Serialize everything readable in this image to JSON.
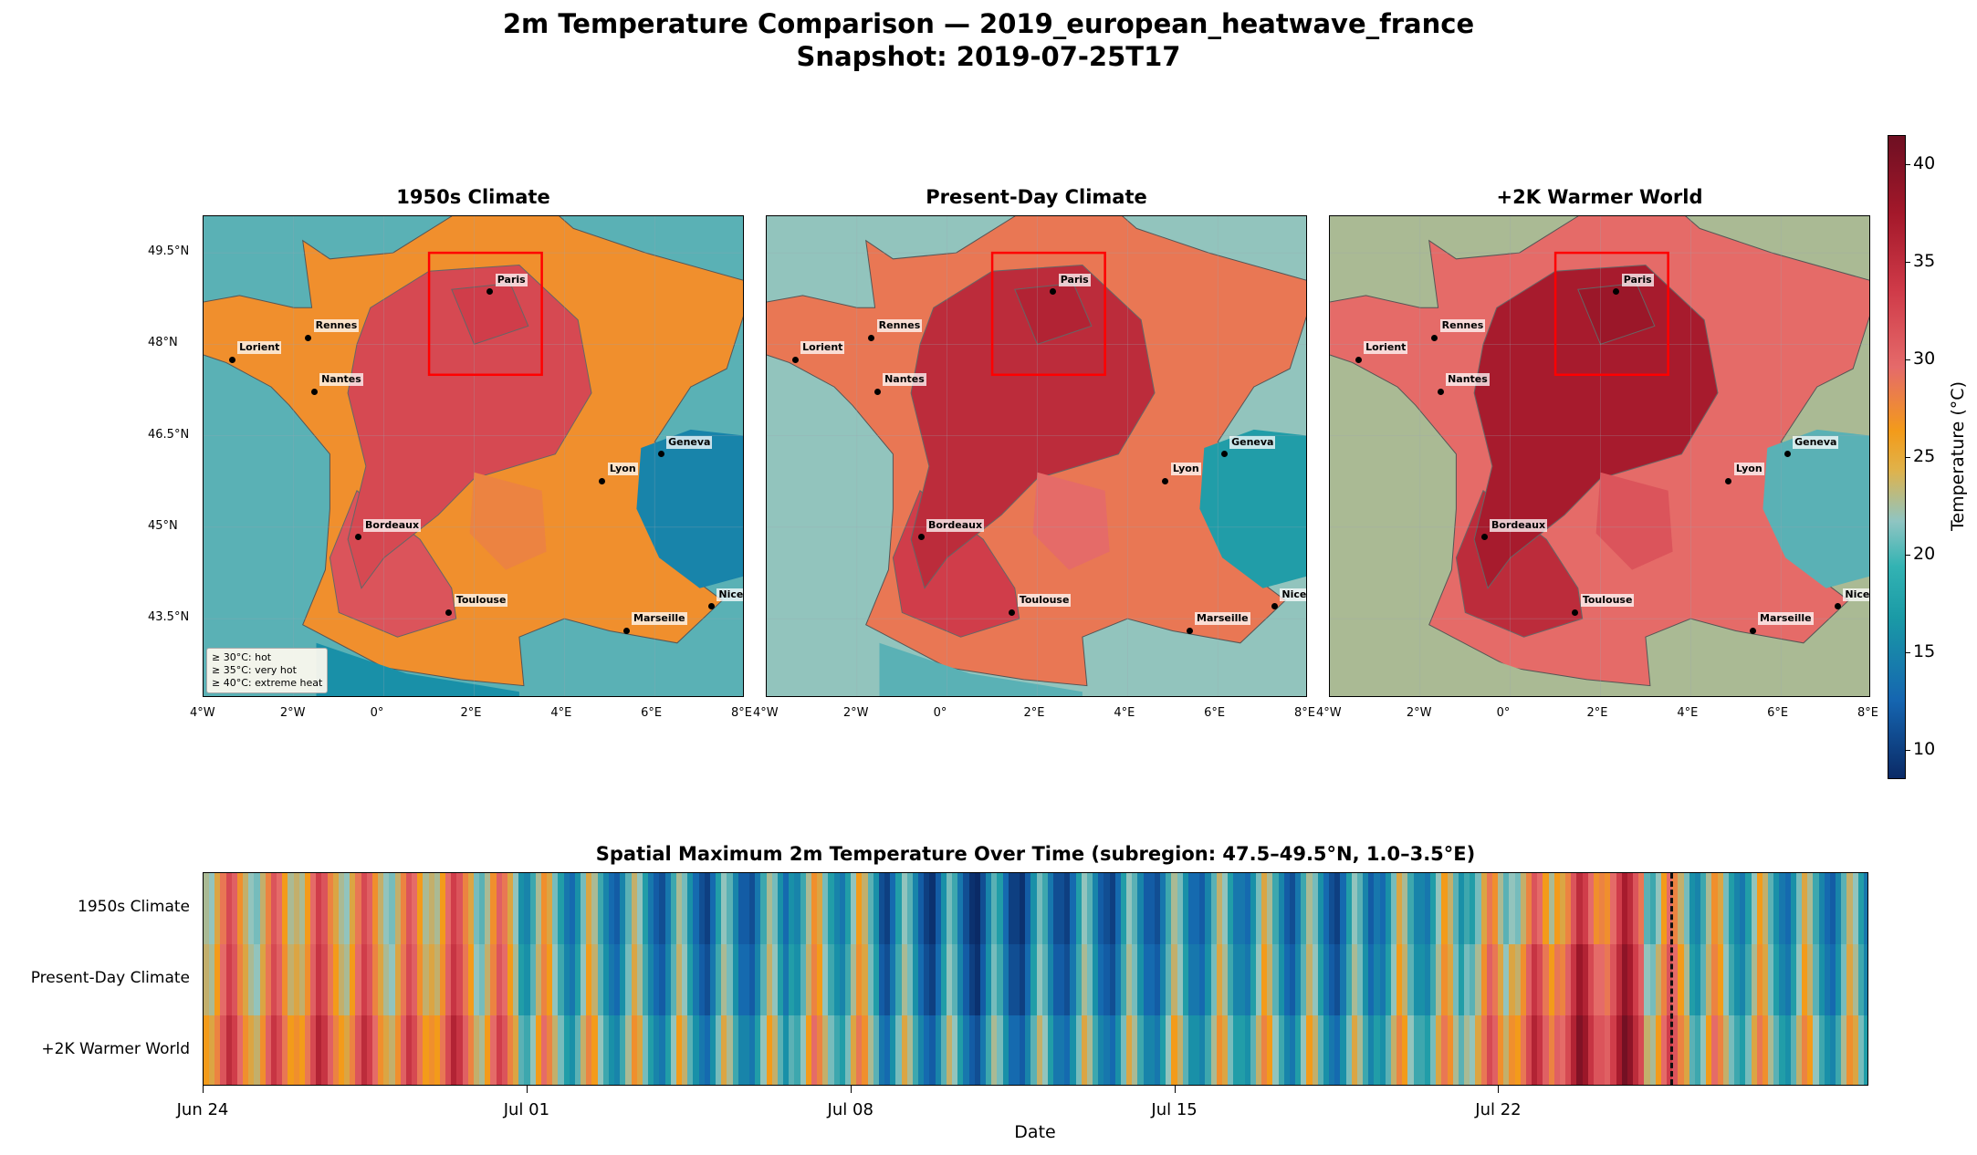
{
  "figure": {
    "title_line1": "2m Temperature Comparison — 2019_european_heatwave_france",
    "title_line2": "Snapshot: 2019-07-25T17"
  },
  "panels": [
    {
      "title": "1950s Climate"
    },
    {
      "title": "Present-Day Climate"
    },
    {
      "title": "+2K Warmer World"
    }
  ],
  "map_axes": {
    "lon_ticks": [
      "4°W",
      "2°W",
      "0°",
      "2°E",
      "4°E",
      "6°E",
      "8°E"
    ],
    "lat_ticks": [
      "49.5°N",
      "48°N",
      "46.5°N",
      "45°N",
      "43.5°N"
    ]
  },
  "cities": [
    {
      "name": "Paris",
      "lon": 2.35,
      "lat": 48.86
    },
    {
      "name": "Rennes",
      "lon": -1.68,
      "lat": 48.11
    },
    {
      "name": "Lorient",
      "lon": -3.37,
      "lat": 47.75
    },
    {
      "name": "Nantes",
      "lon": -1.55,
      "lat": 47.22
    },
    {
      "name": "Geneva",
      "lon": 6.14,
      "lat": 46.2
    },
    {
      "name": "Lyon",
      "lon": 4.84,
      "lat": 45.76
    },
    {
      "name": "Bordeaux",
      "lon": -0.58,
      "lat": 44.84
    },
    {
      "name": "Toulouse",
      "lon": 1.44,
      "lat": 43.6
    },
    {
      "name": "Nice",
      "lon": 7.26,
      "lat": 43.7
    },
    {
      "name": "Marseille",
      "lon": 5.37,
      "lat": 43.3
    }
  ],
  "subregion_box": {
    "lat": [
      47.5,
      49.5
    ],
    "lon": [
      1.0,
      3.5
    ],
    "color": "#ff0000"
  },
  "legend": {
    "items": [
      "≥ 30°C: hot",
      "≥ 35°C: very hot",
      "≥ 40°C: extreme heat"
    ]
  },
  "colorbar": {
    "label": "Temperature (°C)",
    "ticks": [
      10,
      15,
      20,
      25,
      30,
      35,
      40
    ],
    "range": [
      8.5,
      41.5
    ],
    "colors": [
      "#0a2a66",
      "#1565b0",
      "#1a9aa6",
      "#8fc5c2",
      "#f39b1a",
      "#e56a6a",
      "#cf3a48",
      "#a3182a",
      "#6e0f22"
    ]
  },
  "chart_data": {
    "type": "heatmap",
    "title": "Spatial Maximum 2m Temperature Over Time (subregion: 47.5–49.5°N, 1.0–3.5°E)",
    "xlabel": "Date",
    "x_start": "2019-06-24",
    "x_end": "2019-07-30",
    "x_tick_labels": [
      "Jun 24",
      "Jul 01",
      "Jul 08",
      "Jul 15",
      "Jul 22"
    ],
    "rows": [
      "1950s Climate",
      "Present-Day Climate",
      "+2K Warmer World"
    ],
    "snapshot": "2019-07-25T17",
    "series": [
      {
        "name": "1950s Climate",
        "daily_peak_max": [
          30,
          29,
          31,
          30,
          29,
          31,
          28,
          24,
          22,
          21,
          20,
          19,
          20,
          24,
          23,
          19,
          18,
          17,
          18,
          19,
          19,
          20,
          21,
          22,
          20,
          19,
          22,
          23,
          26,
          29,
          33,
          35,
          27,
          24,
          23,
          22,
          21
        ]
      },
      {
        "name": "Present-Day Climate",
        "daily_peak_max": [
          31,
          30,
          32,
          31,
          30,
          32,
          29,
          25,
          23,
          22,
          21,
          20,
          21,
          25,
          24,
          20,
          19,
          18,
          19,
          20,
          20,
          21,
          22,
          23,
          21,
          20,
          23,
          24,
          28,
          32,
          36,
          37,
          29,
          25,
          24,
          23,
          22
        ]
      },
      {
        "name": "+2K Warmer World",
        "daily_peak_max": [
          33,
          32,
          34,
          33,
          32,
          34,
          31,
          27,
          25,
          24,
          23,
          22,
          23,
          27,
          26,
          22,
          21,
          20,
          21,
          22,
          22,
          23,
          24,
          25,
          23,
          22,
          25,
          26,
          30,
          34,
          38,
          39,
          31,
          27,
          26,
          25,
          24
        ]
      }
    ]
  }
}
